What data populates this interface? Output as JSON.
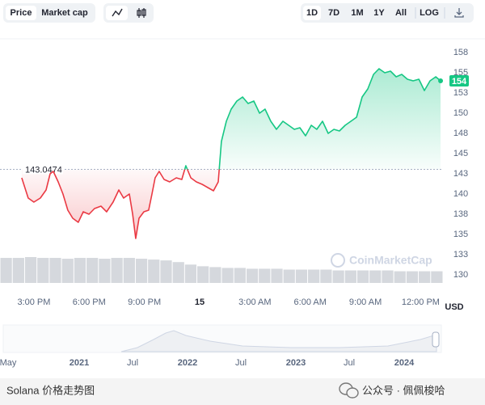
{
  "toolbar": {
    "left_tabs": [
      "Price",
      "Market cap"
    ],
    "ranges": [
      "1D",
      "7D",
      "1M",
      "1Y",
      "All",
      "LOG"
    ]
  },
  "chart_data": {
    "type": "line",
    "x": [
      14.34,
      14.69,
      15,
      15.35,
      15.66,
      15.88,
      16.05,
      16.32,
      16.58,
      16.84,
      17.11,
      17.41,
      17.68,
      17.99,
      18.29,
      18.64,
      18.95,
      19.3,
      19.61,
      19.87,
      20.18,
      20.36,
      20.53,
      20.71,
      20.97,
      21.23,
      21.41,
      21.58,
      21.8,
      22.07,
      22.37,
      22.73,
      23.03,
      23.25,
      23.52,
      23.82,
      24.13,
      24.44,
      24.75,
      25.01,
      25.18,
      25.45,
      25.71,
      26.02,
      26.33,
      26.63,
      26.94,
      27.25,
      27.55,
      27.86,
      28.17,
      28.52,
      28.83,
      29.14,
      29.44,
      29.75,
      30.06,
      30.36,
      30.67,
      30.98,
      31.29,
      31.59,
      31.9,
      32.21,
      32.52,
      32.82,
      33.13,
      33.44,
      33.74,
      34.05,
      34.36,
      34.67,
      34.97,
      35.28,
      35.59,
      35.9,
      36.2,
      36.51,
      36.82,
      37.08
    ],
    "series": [
      {
        "color": "#16c784",
        "below_color": "#ea3943",
        "values": [
          142,
          139.5,
          139,
          139.5,
          140.5,
          142.5,
          142.8,
          141.5,
          140,
          138,
          137,
          136.5,
          137.8,
          137.5,
          138.2,
          138.5,
          137.8,
          139,
          140.5,
          139.5,
          140,
          137.5,
          134.5,
          137,
          137.8,
          138,
          140,
          142,
          142.8,
          141.8,
          141.5,
          142,
          141.8,
          143.5,
          142,
          141.5,
          141.2,
          140.8,
          140.4,
          141.5,
          146.5,
          149,
          150.5,
          151.5,
          152,
          151.2,
          151.5,
          150,
          150.5,
          149,
          148,
          149,
          148.5,
          148,
          148.2,
          147.2,
          148.5,
          148,
          149,
          147.5,
          148,
          147.8,
          148.5,
          149,
          149.5,
          152,
          153,
          154.8,
          155.5,
          155,
          155.2,
          154.5,
          154.8,
          154.2,
          154,
          154.2,
          152.8,
          154,
          154.5,
          154
        ]
      }
    ],
    "baseline": 143.0474,
    "last_price": 154,
    "xlim": [
      13.16,
      37.21
    ],
    "xticks": [
      {
        "value": 15,
        "label": "3:00 PM"
      },
      {
        "value": 18,
        "label": "6:00 PM"
      },
      {
        "value": 21,
        "label": "9:00 PM"
      },
      {
        "value": 24,
        "label": "15"
      },
      {
        "value": 27,
        "label": "3:00 AM"
      },
      {
        "value": 30,
        "label": "6:00 AM"
      },
      {
        "value": 33,
        "label": "9:00 AM"
      },
      {
        "value": 36,
        "label": "12:00 PM"
      }
    ],
    "ylim": [
      129,
      159
    ],
    "yticks": [
      {
        "value": 130,
        "label": "130"
      },
      {
        "value": 132.5,
        "label": "133"
      },
      {
        "value": 135,
        "label": "135"
      },
      {
        "value": 137.5,
        "label": "138"
      },
      {
        "value": 140,
        "label": "140"
      },
      {
        "value": 142.5,
        "label": "143"
      },
      {
        "value": 145,
        "label": "145"
      },
      {
        "value": 147.5,
        "label": "148"
      },
      {
        "value": 150,
        "label": "150"
      },
      {
        "value": 152.5,
        "label": "153"
      },
      {
        "value": 155,
        "label": "155"
      },
      {
        "value": 157.5,
        "label": "158"
      }
    ],
    "currency": "USD",
    "grid": false,
    "volume": {
      "color": "#d5d8dd",
      "values": [
        30,
        30,
        31,
        30,
        30,
        29,
        30,
        30,
        29,
        30,
        30,
        29,
        28,
        27,
        25,
        22,
        20,
        19,
        18,
        18,
        17,
        17,
        17,
        16,
        16,
        16,
        16,
        15,
        15,
        15,
        15,
        15,
        14,
        14,
        14,
        14
      ]
    }
  },
  "watermark": "CoinMarketCap",
  "navigator": {
    "labels": [
      "May",
      "2021",
      "Jul",
      "2022",
      "Jul",
      "2023",
      "Jul",
      "2024"
    ]
  },
  "footer": {
    "caption": "Solana 价格走势图",
    "account": "公众号 · 佩佩梭哈"
  }
}
